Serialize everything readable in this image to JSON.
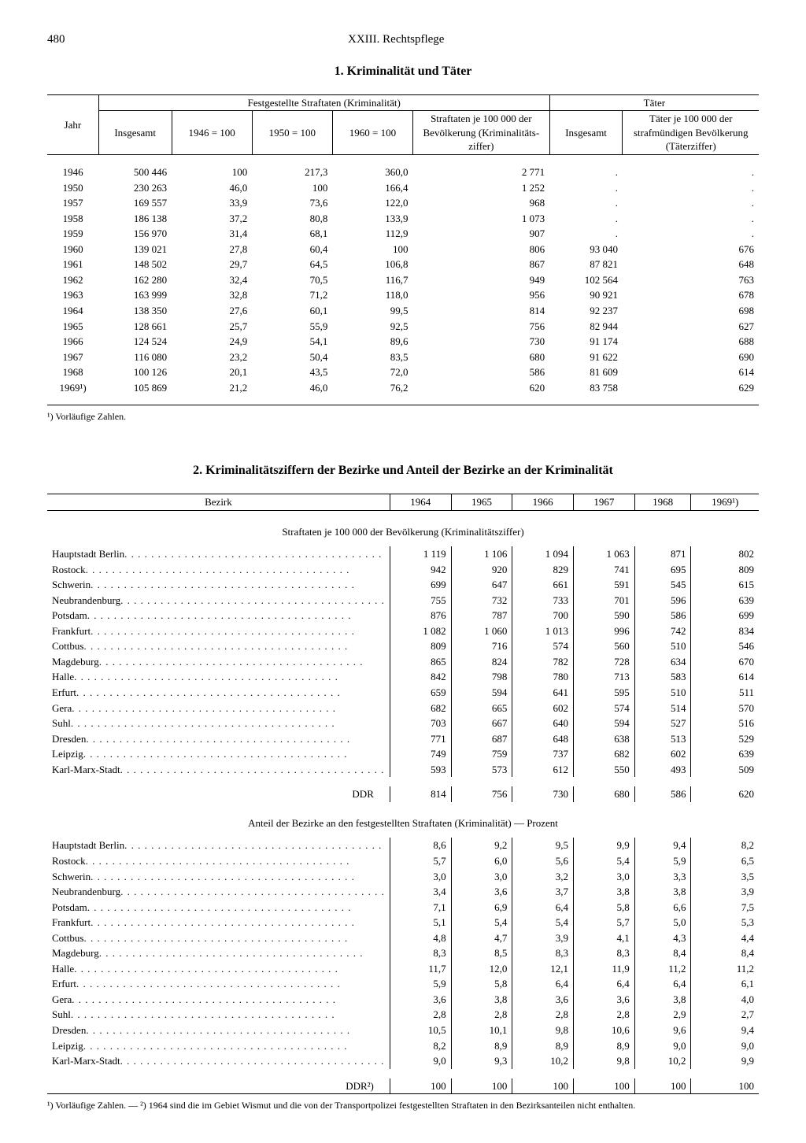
{
  "page_number": "480",
  "chapter": "XXIII. Rechtspflege",
  "section1": {
    "title": "1. Kriminalität und Täter",
    "header_group1": "Festgestellte Straftaten (Kriminalität)",
    "header_group2": "Täter",
    "cols": {
      "jahr": "Jahr",
      "insgesamt": "Insgesamt",
      "i1946": "1946 = 100",
      "i1950": "1950 = 100",
      "i1960": "1960 = 100",
      "ziffer": "Straftaten je 100 000 der Bevölkerung (Kriminalitäts-ziffer)",
      "t_insg": "Insgesamt",
      "t_ziffer": "Täter je 100 000 der strafmündigen Bevölkerung (Täterziffer)"
    },
    "rows": [
      {
        "jahr": "1946",
        "insg": "500 446",
        "i46": "100",
        "i50": "217,3",
        "i60": "360,0",
        "zf": "2 771",
        "ti": ".",
        "tz": "."
      },
      {
        "jahr": "1950",
        "insg": "230 263",
        "i46": "46,0",
        "i50": "100",
        "i60": "166,4",
        "zf": "1 252",
        "ti": ".",
        "tz": "."
      },
      {
        "jahr": "1957",
        "insg": "169 557",
        "i46": "33,9",
        "i50": "73,6",
        "i60": "122,0",
        "zf": "968",
        "ti": ".",
        "tz": "."
      },
      {
        "jahr": "1958",
        "insg": "186 138",
        "i46": "37,2",
        "i50": "80,8",
        "i60": "133,9",
        "zf": "1 073",
        "ti": ".",
        "tz": "."
      },
      {
        "jahr": "1959",
        "insg": "156 970",
        "i46": "31,4",
        "i50": "68,1",
        "i60": "112,9",
        "zf": "907",
        "ti": ".",
        "tz": "."
      },
      {
        "jahr": "1960",
        "insg": "139 021",
        "i46": "27,8",
        "i50": "60,4",
        "i60": "100",
        "zf": "806",
        "ti": "93 040",
        "tz": "676"
      },
      {
        "jahr": "1961",
        "insg": "148 502",
        "i46": "29,7",
        "i50": "64,5",
        "i60": "106,8",
        "zf": "867",
        "ti": "87 821",
        "tz": "648"
      },
      {
        "jahr": "1962",
        "insg": "162 280",
        "i46": "32,4",
        "i50": "70,5",
        "i60": "116,7",
        "zf": "949",
        "ti": "102 564",
        "tz": "763"
      },
      {
        "jahr": "1963",
        "insg": "163 999",
        "i46": "32,8",
        "i50": "71,2",
        "i60": "118,0",
        "zf": "956",
        "ti": "90 921",
        "tz": "678"
      },
      {
        "jahr": "1964",
        "insg": "138 350",
        "i46": "27,6",
        "i50": "60,1",
        "i60": "99,5",
        "zf": "814",
        "ti": "92 237",
        "tz": "698"
      },
      {
        "jahr": "1965",
        "insg": "128 661",
        "i46": "25,7",
        "i50": "55,9",
        "i60": "92,5",
        "zf": "756",
        "ti": "82 944",
        "tz": "627"
      },
      {
        "jahr": "1966",
        "insg": "124 524",
        "i46": "24,9",
        "i50": "54,1",
        "i60": "89,6",
        "zf": "730",
        "ti": "91 174",
        "tz": "688"
      },
      {
        "jahr": "1967",
        "insg": "116 080",
        "i46": "23,2",
        "i50": "50,4",
        "i60": "83,5",
        "zf": "680",
        "ti": "91 622",
        "tz": "690"
      },
      {
        "jahr": "1968",
        "insg": "100 126",
        "i46": "20,1",
        "i50": "43,5",
        "i60": "72,0",
        "zf": "586",
        "ti": "81 609",
        "tz": "614"
      },
      {
        "jahr": "1969¹)",
        "insg": "105 869",
        "i46": "21,2",
        "i50": "46,0",
        "i60": "76,2",
        "zf": "620",
        "ti": "83 758",
        "tz": "629"
      }
    ],
    "footnote": "¹) Vorläufige Zahlen."
  },
  "section2": {
    "title": "2. Kriminalitätsziffern der Bezirke und Anteil der Bezirke an der Kriminalität",
    "cols": {
      "bezirk": "Bezirk",
      "y64": "1964",
      "y65": "1965",
      "y66": "1966",
      "y67": "1967",
      "y68": "1968",
      "y69": "1969¹)"
    },
    "sub_a": "Straftaten je 100 000 der Bevölkerung (Kriminalitätsziffer)",
    "sub_b": "Anteil der Bezirke an den festgestellten Straftaten (Kriminalität) — Prozent",
    "bezirke": [
      "Hauptstadt Berlin",
      "Rostock",
      "Schwerin",
      "Neubrandenburg",
      "Potsdam",
      "Frankfurt",
      "Cottbus",
      "Magdeburg",
      "Halle",
      "Erfurt",
      "Gera",
      "Suhl",
      "Dresden",
      "Leipzig",
      "Karl-Marx-Stadt"
    ],
    "part_a": [
      [
        "1 119",
        "1 106",
        "1 094",
        "1 063",
        "871",
        "802"
      ],
      [
        "942",
        "920",
        "829",
        "741",
        "695",
        "809"
      ],
      [
        "699",
        "647",
        "661",
        "591",
        "545",
        "615"
      ],
      [
        "755",
        "732",
        "733",
        "701",
        "596",
        "639"
      ],
      [
        "876",
        "787",
        "700",
        "590",
        "586",
        "699"
      ],
      [
        "1 082",
        "1 060",
        "1 013",
        "996",
        "742",
        "834"
      ],
      [
        "809",
        "716",
        "574",
        "560",
        "510",
        "546"
      ],
      [
        "865",
        "824",
        "782",
        "728",
        "634",
        "670"
      ],
      [
        "842",
        "798",
        "780",
        "713",
        "583",
        "614"
      ],
      [
        "659",
        "594",
        "641",
        "595",
        "510",
        "511"
      ],
      [
        "682",
        "665",
        "602",
        "574",
        "514",
        "570"
      ],
      [
        "703",
        "667",
        "640",
        "594",
        "527",
        "516"
      ],
      [
        "771",
        "687",
        "648",
        "638",
        "513",
        "529"
      ],
      [
        "749",
        "759",
        "737",
        "682",
        "602",
        "639"
      ],
      [
        "593",
        "573",
        "612",
        "550",
        "493",
        "509"
      ]
    ],
    "total_a": {
      "label": "DDR",
      "vals": [
        "814",
        "756",
        "730",
        "680",
        "586",
        "620"
      ]
    },
    "part_b": [
      [
        "8,6",
        "9,2",
        "9,5",
        "9,9",
        "9,4",
        "8,2"
      ],
      [
        "5,7",
        "6,0",
        "5,6",
        "5,4",
        "5,9",
        "6,5"
      ],
      [
        "3,0",
        "3,0",
        "3,2",
        "3,0",
        "3,3",
        "3,5"
      ],
      [
        "3,4",
        "3,6",
        "3,7",
        "3,8",
        "3,8",
        "3,9"
      ],
      [
        "7,1",
        "6,9",
        "6,4",
        "5,8",
        "6,6",
        "7,5"
      ],
      [
        "5,1",
        "5,4",
        "5,4",
        "5,7",
        "5,0",
        "5,3"
      ],
      [
        "4,8",
        "4,7",
        "3,9",
        "4,1",
        "4,3",
        "4,4"
      ],
      [
        "8,3",
        "8,5",
        "8,3",
        "8,3",
        "8,4",
        "8,4"
      ],
      [
        "11,7",
        "12,0",
        "12,1",
        "11,9",
        "11,2",
        "11,2"
      ],
      [
        "5,9",
        "5,8",
        "6,4",
        "6,4",
        "6,4",
        "6,1"
      ],
      [
        "3,6",
        "3,8",
        "3,6",
        "3,6",
        "3,8",
        "4,0"
      ],
      [
        "2,8",
        "2,8",
        "2,8",
        "2,8",
        "2,9",
        "2,7"
      ],
      [
        "10,5",
        "10,1",
        "9,8",
        "10,6",
        "9,6",
        "9,4"
      ],
      [
        "8,2",
        "8,9",
        "8,9",
        "8,9",
        "9,0",
        "9,0"
      ],
      [
        "9,0",
        "9,3",
        "10,2",
        "9,8",
        "10,2",
        "9,9"
      ]
    ],
    "total_b": {
      "label": "DDR²)",
      "vals": [
        "100",
        "100",
        "100",
        "100",
        "100",
        "100"
      ]
    },
    "footnote": "¹) Vorläufige Zahlen. — ²) 1964 sind die im Gebiet Wismut und die von der Transportpolizei festgestellten Straftaten in den Bezirksanteilen nicht enthalten."
  }
}
